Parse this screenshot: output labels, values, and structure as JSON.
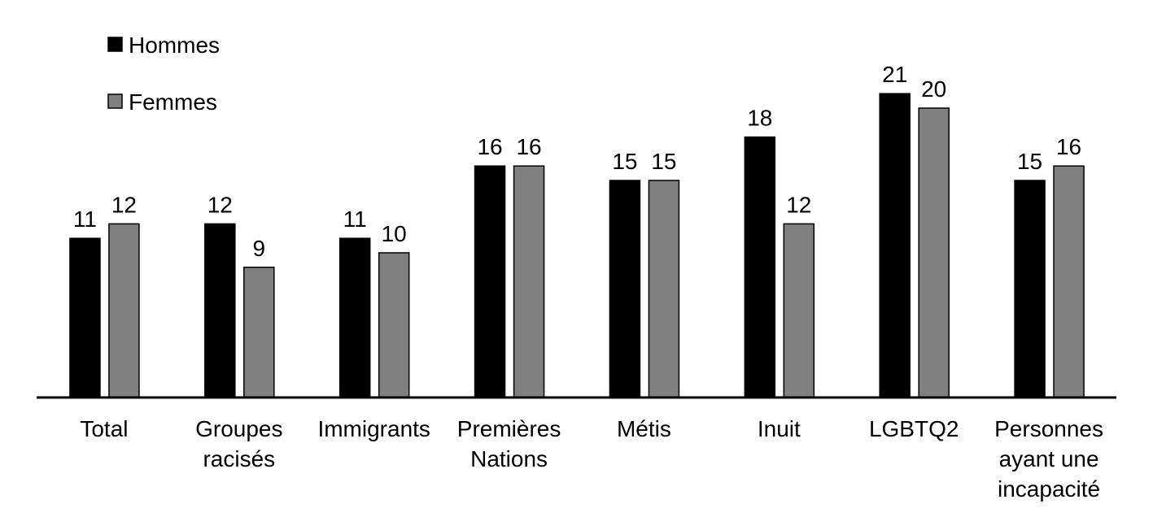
{
  "chart_data": {
    "type": "bar",
    "categories": [
      "Total",
      "Groupes racisés",
      "Immigrants",
      "Premières Nations",
      "Métis",
      "Inuit",
      "LGBTQ2",
      "Personnes ayant une incapacité"
    ],
    "series": [
      {
        "name": "Hommes",
        "color": "#000000",
        "values": [
          11,
          12,
          11,
          16,
          15,
          18,
          21,
          15
        ]
      },
      {
        "name": "Femmes",
        "color": "#808080",
        "values": [
          12,
          9,
          10,
          16,
          15,
          12,
          20,
          16
        ]
      }
    ]
  }
}
